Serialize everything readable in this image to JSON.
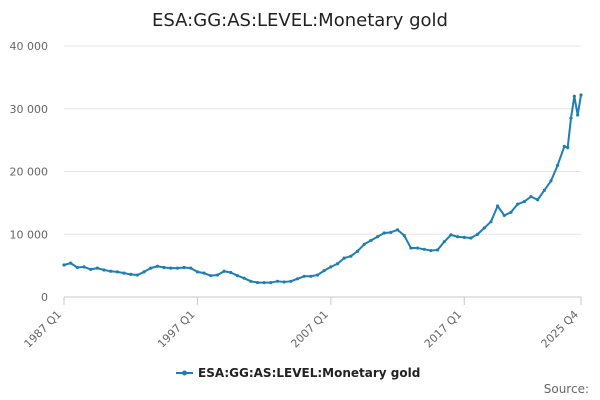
{
  "chart_data": {
    "type": "line",
    "title": "ESA:GG:AS:LEVEL:Monetary gold",
    "xlabel": "",
    "ylabel": "",
    "ylim": [
      0,
      40000
    ],
    "yticks": [
      0,
      10000,
      20000,
      30000,
      40000
    ],
    "ytick_labels": [
      "0",
      "10 000",
      "20 000",
      "30 000",
      "40 000"
    ],
    "xlim": [
      1987.0,
      2025.75
    ],
    "xticks": [
      1987.0,
      1997.0,
      2007.0,
      2017.0,
      2025.75
    ],
    "xtick_labels": [
      "1987 Q1",
      "1997 Q1",
      "2007 Q1",
      "2017 Q1",
      "2025 Q4"
    ],
    "grid": true,
    "legend_position": "bottom-center",
    "series": [
      {
        "name": "ESA:GG:AS:LEVEL:Monetary gold",
        "color": "#1f7fb5",
        "x": [
          1987.0,
          1987.5,
          1988.0,
          1988.5,
          1989.0,
          1989.5,
          1990.0,
          1990.5,
          1991.0,
          1991.5,
          1992.0,
          1992.5,
          1993.0,
          1993.5,
          1994.0,
          1994.5,
          1995.0,
          1995.5,
          1996.0,
          1996.5,
          1997.0,
          1997.5,
          1998.0,
          1998.5,
          1999.0,
          1999.5,
          2000.0,
          2000.5,
          2001.0,
          2001.5,
          2002.0,
          2002.5,
          2003.0,
          2003.5,
          2004.0,
          2004.5,
          2005.0,
          2005.5,
          2006.0,
          2006.5,
          2007.0,
          2007.5,
          2008.0,
          2008.5,
          2009.0,
          2009.5,
          2010.0,
          2010.5,
          2011.0,
          2011.5,
          2012.0,
          2012.5,
          2013.0,
          2013.5,
          2014.0,
          2014.5,
          2015.0,
          2015.5,
          2016.0,
          2016.5,
          2017.0,
          2017.5,
          2018.0,
          2018.5,
          2019.0,
          2019.5,
          2020.0,
          2020.5,
          2021.0,
          2021.5,
          2022.0,
          2022.5,
          2023.0,
          2023.5,
          2024.0,
          2024.5,
          2024.75,
          2025.0,
          2025.25,
          2025.5,
          2025.75
        ],
        "values": [
          5100,
          5400,
          4700,
          4800,
          4400,
          4600,
          4300,
          4100,
          4000,
          3800,
          3600,
          3500,
          4000,
          4600,
          4900,
          4700,
          4600,
          4600,
          4700,
          4600,
          4000,
          3800,
          3400,
          3500,
          4100,
          3900,
          3400,
          3000,
          2500,
          2300,
          2300,
          2300,
          2500,
          2400,
          2500,
          2900,
          3300,
          3300,
          3500,
          4200,
          4800,
          5300,
          6200,
          6500,
          7300,
          8400,
          9000,
          9600,
          10200,
          10300,
          10700,
          9800,
          7800,
          7800,
          7600,
          7400,
          7500,
          8800,
          9900,
          9600,
          9500,
          9400,
          10000,
          11000,
          12000,
          14500,
          13000,
          13500,
          14800,
          15200,
          16000,
          15500,
          17000,
          18500,
          21000,
          24000,
          23800,
          28500,
          32000,
          29000,
          32200
        ]
      }
    ]
  },
  "legend": {
    "label": "ESA:GG:AS:LEVEL:Monetary gold"
  },
  "footer": {
    "source_label": "Source:"
  }
}
